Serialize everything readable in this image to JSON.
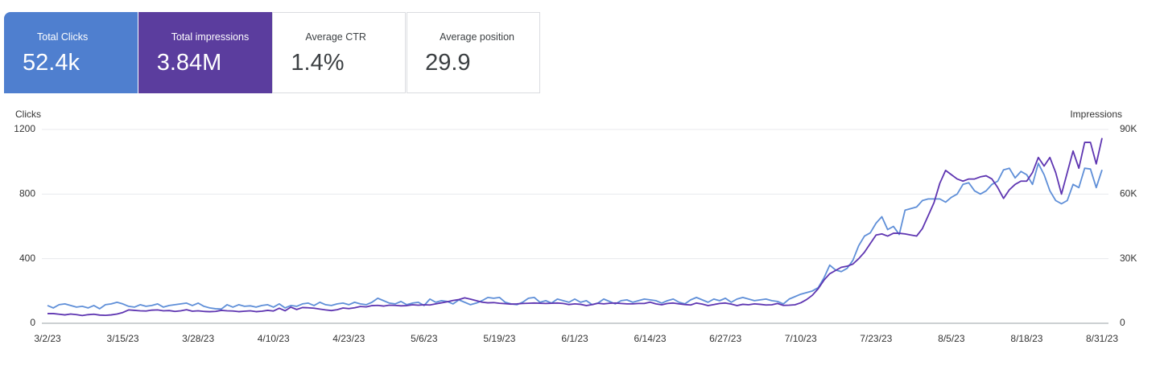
{
  "cards": [
    {
      "label": "Total Clicks",
      "value": "52.4k",
      "checked": true,
      "color": "#4f7fcf"
    },
    {
      "label": "Total impressions",
      "value": "3.84M",
      "checked": true,
      "color": "#5b3d9e"
    },
    {
      "label": "Average CTR",
      "value": "1.4%",
      "checked": false,
      "color": "#ffffff"
    },
    {
      "label": "Average position",
      "value": "29.9",
      "checked": false,
      "color": "#ffffff"
    }
  ],
  "chart_data": {
    "type": "line",
    "ylabel": "Clicks",
    "y2label": "Impressions",
    "categories": [
      "3/2/23",
      null,
      null,
      null,
      null,
      null,
      null,
      null,
      null,
      null,
      null,
      null,
      null,
      "3/15/23",
      null,
      null,
      null,
      null,
      null,
      null,
      null,
      null,
      null,
      null,
      null,
      null,
      "3/28/23",
      null,
      null,
      null,
      null,
      null,
      null,
      null,
      null,
      null,
      null,
      null,
      null,
      "4/10/23",
      null,
      null,
      null,
      null,
      null,
      null,
      null,
      null,
      null,
      null,
      null,
      null,
      "4/23/23",
      null,
      null,
      null,
      null,
      null,
      null,
      null,
      null,
      null,
      null,
      null,
      null,
      "5/6/23",
      null,
      null,
      null,
      null,
      null,
      null,
      null,
      null,
      null,
      null,
      null,
      null,
      "5/19/23",
      null,
      null,
      null,
      null,
      null,
      null,
      null,
      null,
      null,
      null,
      null,
      null,
      "6/1/23",
      null,
      null,
      null,
      null,
      null,
      null,
      null,
      null,
      null,
      null,
      null,
      null,
      "6/14/23",
      null,
      null,
      null,
      null,
      null,
      null,
      null,
      null,
      null,
      null,
      null,
      null,
      "6/27/23",
      null,
      null,
      null,
      null,
      null,
      null,
      null,
      null,
      null,
      null,
      null,
      null,
      "7/10/23",
      null,
      null,
      null,
      null,
      null,
      null,
      null,
      null,
      null,
      null,
      null,
      null,
      "7/23/23",
      null,
      null,
      null,
      null,
      null,
      null,
      null,
      null,
      null,
      null,
      null,
      null,
      "8/5/23",
      null,
      null,
      null,
      null,
      null,
      null,
      null,
      null,
      null,
      null,
      null,
      null,
      "8/18/23",
      null,
      null,
      null,
      null,
      null,
      null,
      null,
      null,
      null,
      null,
      null,
      null,
      "8/31/23"
    ],
    "series": [
      {
        "color": "#5f8fd8",
        "values": [
          110,
          95,
          115,
          120,
          110,
          100,
          105,
          95,
          110,
          90,
          115,
          120,
          130,
          120,
          105,
          100,
          115,
          105,
          110,
          120,
          100,
          110,
          115,
          120,
          125,
          110,
          125,
          105,
          95,
          90,
          88,
          115,
          100,
          115,
          105,
          108,
          100,
          110,
          115,
          100,
          120,
          95,
          110,
          105,
          120,
          125,
          110,
          130,
          115,
          110,
          120,
          125,
          115,
          130,
          120,
          115,
          130,
          155,
          140,
          125,
          120,
          135,
          115,
          125,
          130,
          110,
          150,
          130,
          140,
          135,
          120,
          145,
          130,
          115,
          125,
          140,
          160,
          155,
          160,
          130,
          120,
          115,
          130,
          155,
          160,
          130,
          140,
          125,
          150,
          140,
          130,
          150,
          130,
          140,
          115,
          125,
          150,
          135,
          120,
          140,
          145,
          130,
          140,
          150,
          145,
          140,
          125,
          140,
          150,
          130,
          120,
          145,
          160,
          145,
          130,
          150,
          140,
          155,
          130,
          150,
          160,
          150,
          140,
          145,
          150,
          140,
          135,
          120,
          150,
          165,
          180,
          190,
          200,
          220,
          280,
          360,
          330,
          320,
          340,
          390,
          480,
          540,
          560,
          620,
          660,
          580,
          600,
          550,
          700,
          710,
          720,
          760,
          770,
          770,
          770,
          750,
          780,
          800,
          860,
          870,
          820,
          800,
          820,
          860,
          880,
          950,
          960,
          900,
          940,
          920,
          860,
          990,
          920,
          820,
          760,
          740,
          760,
          860,
          840,
          960,
          955,
          840,
          950
        ]
      },
      {
        "color": "#5e35b1",
        "axis": "y2",
        "values": [
          4500,
          4500,
          4200,
          3900,
          4300,
          4000,
          3600,
          4000,
          4200,
          3800,
          3700,
          3900,
          4300,
          5000,
          6200,
          6000,
          5800,
          5700,
          6100,
          6200,
          5800,
          5900,
          5500,
          5800,
          6300,
          5600,
          5800,
          5500,
          5400,
          5500,
          6000,
          5800,
          5700,
          5400,
          5600,
          5800,
          5400,
          5600,
          6000,
          5700,
          7000,
          5800,
          7500,
          6400,
          7300,
          7200,
          7000,
          6600,
          6200,
          5900,
          6300,
          7100,
          6800,
          7200,
          7800,
          7600,
          8200,
          8300,
          8000,
          8400,
          8300,
          8100,
          8200,
          8600,
          8400,
          8600,
          8500,
          9000,
          9500,
          10000,
          10600,
          11000,
          11800,
          11200,
          10500,
          9800,
          9500,
          9600,
          9300,
          9100,
          8900,
          9000,
          9200,
          9300,
          9400,
          9300,
          9200,
          9300,
          9400,
          9200,
          8700,
          9000,
          8800,
          8200,
          8700,
          9300,
          9000,
          9300,
          9400,
          9200,
          9000,
          9000,
          9200,
          9200,
          9800,
          9000,
          8600,
          9200,
          9400,
          9000,
          8700,
          8500,
          9400,
          8900,
          8200,
          8700,
          9200,
          9400,
          8900,
          8200,
          8800,
          8600,
          9000,
          8800,
          8500,
          8600,
          9200,
          8300,
          8400,
          8600,
          9500,
          11000,
          13000,
          16000,
          20000,
          23000,
          24500,
          26000,
          26500,
          27500,
          30000,
          33000,
          37000,
          41000,
          41500,
          40500,
          41800,
          41800,
          41500,
          41000,
          40500,
          44000,
          50000,
          56000,
          65000,
          71000,
          69000,
          67000,
          66000,
          67000,
          67000,
          68000,
          68500,
          67000,
          63000,
          58000,
          62000,
          64500,
          66000,
          66000,
          70000,
          77000,
          73000,
          77000,
          70000,
          60000,
          70000,
          80000,
          72000,
          84000,
          84000,
          74000,
          86000
        ]
      }
    ],
    "ylim": [
      0,
      1200
    ],
    "yticks": [
      0,
      400,
      800,
      1200
    ],
    "y2lim": [
      0,
      90000
    ],
    "y2ticks": [
      0,
      {
        "value": 30000,
        "label": "30K"
      },
      {
        "value": 60000,
        "label": "60K"
      },
      {
        "value": 90000,
        "label": "90K"
      }
    ],
    "grid": true
  }
}
